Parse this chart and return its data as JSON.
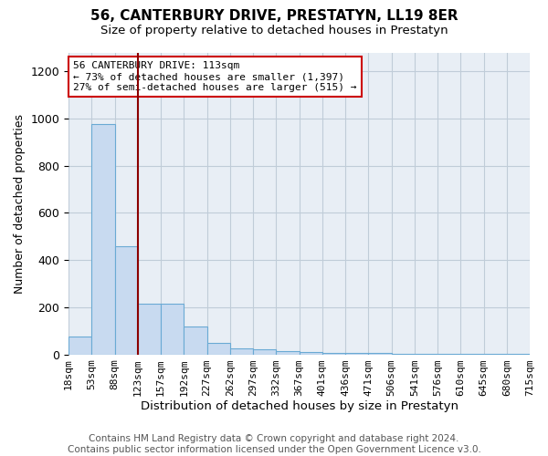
{
  "title": "56, CANTERBURY DRIVE, PRESTATYN, LL19 8ER",
  "subtitle": "Size of property relative to detached houses in Prestatyn",
  "xlabel": "Distribution of detached houses by size in Prestatyn",
  "ylabel": "Number of detached properties",
  "tick_labels": [
    "18sqm",
    "53sqm",
    "88sqm",
    "123sqm",
    "157sqm",
    "192sqm",
    "227sqm",
    "262sqm",
    "297sqm",
    "332sqm",
    "367sqm",
    "401sqm",
    "436sqm",
    "471sqm",
    "506sqm",
    "541sqm",
    "576sqm",
    "610sqm",
    "645sqm",
    "680sqm",
    "715sqm"
  ],
  "bar_heights": [
    75,
    975,
    460,
    215,
    215,
    120,
    50,
    25,
    20,
    15,
    10,
    5,
    5,
    5,
    3,
    3,
    3,
    3,
    3,
    3
  ],
  "bar_color": "#c8daf0",
  "bar_edge_color": "#6aaad4",
  "property_bar_index": 2,
  "red_line_color": "#8b0000",
  "annotation_text": "56 CANTERBURY DRIVE: 113sqm\n← 73% of detached houses are smaller (1,397)\n27% of semi-detached houses are larger (515) →",
  "annotation_box_color": "#ffffff",
  "annotation_box_edge_color": "#cc0000",
  "ylim": [
    0,
    1280
  ],
  "yticks": [
    0,
    200,
    400,
    600,
    800,
    1000,
    1200
  ],
  "footer_text": "Contains HM Land Registry data © Crown copyright and database right 2024.\nContains public sector information licensed under the Open Government Licence v3.0.",
  "bg_color": "#ffffff",
  "plot_bg_color": "#e8eef5",
  "grid_color": "#c0ccd8",
  "title_fontsize": 11,
  "subtitle_fontsize": 9.5,
  "xlabel_fontsize": 9.5,
  "ylabel_fontsize": 9,
  "tick_fontsize": 8,
  "footer_fontsize": 7.5,
  "annotation_fontsize": 8
}
